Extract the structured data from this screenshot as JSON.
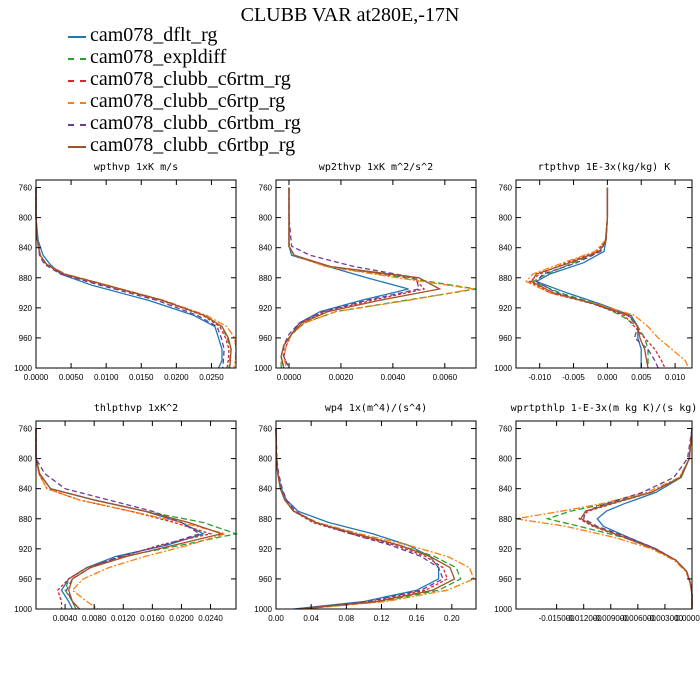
{
  "title": "CLUBB VAR at280E,-17N",
  "series": [
    {
      "name": "cam078_dflt_rg",
      "color": "#1f77b4",
      "dash": ""
    },
    {
      "name": "cam078_expldiff",
      "color": "#2ca02c",
      "dash": "6,3"
    },
    {
      "name": "cam078_clubb_c6rtm_rg",
      "color": "#d62728",
      "dash": "3,2"
    },
    {
      "name": "cam078_clubb_c6rtp_rg",
      "color": "#ff7f0e",
      "dash": "7,2,2,2"
    },
    {
      "name": "cam078_clubb_c6rtbm_rg",
      "color": "#6a3d9a",
      "dash": "5,3"
    },
    {
      "name": "cam078_clubb_c6rtbp_rg",
      "color": "#a0522d",
      "dash": ""
    }
  ],
  "chart_data": [
    {
      "type": "line",
      "title": "wpthvp  1xK m/s",
      "xlim": [
        0,
        0.0285
      ],
      "ylim": [
        750,
        1000
      ],
      "xticks": [
        "0.0000",
        "0.0050",
        "0.0100",
        "0.0150",
        "0.0200",
        "0.0250"
      ],
      "xtick_values": [
        0,
        0.005,
        0.01,
        0.015,
        0.02,
        0.025
      ],
      "yticks": [
        "760",
        "800",
        "840",
        "880",
        "920",
        "960",
        "1000"
      ],
      "ytick_values": [
        760,
        800,
        840,
        880,
        920,
        960,
        1000
      ],
      "y": [
        760,
        800,
        830,
        850,
        862,
        875,
        890,
        910,
        930,
        945,
        960,
        975,
        990,
        1000
      ],
      "series_x": [
        [
          0,
          0,
          0.0003,
          0.001,
          0.002,
          0.0035,
          0.008,
          0.016,
          0.0225,
          0.0255,
          0.026,
          0.0265,
          0.0265,
          0.026
        ],
        [
          0,
          0,
          0.0002,
          0.0006,
          0.0015,
          0.004,
          0.01,
          0.018,
          0.024,
          0.0265,
          0.0272,
          0.0278,
          0.0276,
          0.0275
        ],
        [
          0,
          0,
          0.0002,
          0.0006,
          0.0014,
          0.0038,
          0.0098,
          0.0178,
          0.0238,
          0.0262,
          0.027,
          0.0275,
          0.0274,
          0.0272
        ],
        [
          0,
          0,
          0.0002,
          0.0006,
          0.0015,
          0.0042,
          0.0102,
          0.0182,
          0.0243,
          0.0272,
          0.0283,
          0.0285,
          0.0284,
          0.0282
        ],
        [
          0,
          0,
          0.0002,
          0.0005,
          0.0012,
          0.0035,
          0.0092,
          0.0172,
          0.023,
          0.0258,
          0.0264,
          0.0268,
          0.0267,
          0.0266
        ],
        [
          0,
          0,
          0.0002,
          0.0006,
          0.0015,
          0.004,
          0.0101,
          0.018,
          0.024,
          0.0265,
          0.0274,
          0.0278,
          0.0277,
          0.0276
        ]
      ]
    },
    {
      "type": "line",
      "title": "wp2thvp  1xK m^2/s^2",
      "xlim": [
        -0.0005,
        0.0072
      ],
      "ylim": [
        750,
        1000
      ],
      "xticks": [
        "0.0000",
        "0.0020",
        "0.0040",
        "0.0060"
      ],
      "xtick_values": [
        0,
        0.002,
        0.004,
        0.006
      ],
      "yticks": [
        "760",
        "800",
        "840",
        "880",
        "920",
        "960",
        "1000"
      ],
      "ytick_values": [
        760,
        800,
        840,
        880,
        920,
        960,
        1000
      ],
      "y": [
        760,
        800,
        838,
        850,
        865,
        880,
        895,
        910,
        925,
        940,
        955,
        970,
        985,
        1000
      ],
      "series_x": [
        [
          0,
          0,
          0,
          0.0001,
          0.0015,
          0.003,
          0.0046,
          0.0028,
          0.0012,
          0.0004,
          0.0001,
          -0.0002,
          -0.0003,
          -0.0002
        ],
        [
          0,
          0,
          0,
          0.0002,
          0.0015,
          0.0045,
          0.0072,
          0.0045,
          0.0018,
          0.0006,
          0.0001,
          -0.0002,
          -0.0003,
          -0.0003
        ],
        [
          0,
          0,
          0,
          0.0002,
          0.0015,
          0.0048,
          0.0052,
          0.0032,
          0.0014,
          0.0004,
          0.0001,
          -0.0001,
          -0.0002,
          0
        ],
        [
          0,
          0,
          0,
          0.0002,
          0.0014,
          0.0042,
          0.0071,
          0.0046,
          0.0018,
          0.0006,
          0.0001,
          -0.0001,
          -0.0002,
          -0.0001
        ],
        [
          0,
          0,
          0.0001,
          0.0008,
          0.0025,
          0.0049,
          0.005,
          0.003,
          0.0013,
          0.0004,
          0,
          -0.0002,
          -0.0002,
          0
        ],
        [
          0,
          0,
          0,
          0.0002,
          0.0016,
          0.005,
          0.0058,
          0.0035,
          0.0015,
          0.0005,
          0.0001,
          -0.0002,
          -0.0003,
          -0.0002
        ]
      ]
    },
    {
      "type": "line",
      "title": "rtpthvp  1E-3x(kg/kg) K",
      "xlim": [
        -0.0135,
        0.0125
      ],
      "ylim": [
        750,
        1000
      ],
      "xticks": [
        "-0.010",
        "-0.005",
        "0.000",
        "0.005",
        "0.010"
      ],
      "xtick_values": [
        -0.01,
        -0.005,
        0,
        0.005,
        0.01
      ],
      "yticks": [
        "760",
        "800",
        "840",
        "880",
        "920",
        "960",
        "1000"
      ],
      "ytick_values": [
        760,
        800,
        840,
        880,
        920,
        960,
        1000
      ],
      "y": [
        760,
        800,
        830,
        845,
        860,
        875,
        885,
        900,
        915,
        930,
        945,
        960,
        975,
        990,
        1000
      ],
      "series_x": [
        [
          0,
          0,
          -0.0002,
          -0.0005,
          -0.0035,
          -0.0085,
          -0.0105,
          -0.006,
          -0.001,
          0.0035,
          0.0045,
          0.0045,
          0.005,
          0.005,
          0.005
        ],
        [
          0,
          0,
          -0.0002,
          -0.001,
          -0.005,
          -0.009,
          -0.011,
          -0.007,
          -0.0015,
          0.002,
          0.0045,
          0.0055,
          0.006,
          0.006,
          0.006
        ],
        [
          0,
          0,
          -0.0003,
          -0.0015,
          -0.006,
          -0.01,
          -0.0115,
          -0.0085,
          -0.002,
          0.0025,
          0.004,
          0.0055,
          0.007,
          0.008,
          0.0085
        ],
        [
          0,
          0,
          -0.0003,
          -0.0018,
          -0.0065,
          -0.011,
          -0.012,
          -0.0085,
          -0.0015,
          0.004,
          0.006,
          0.0075,
          0.0095,
          0.0115,
          0.012
        ],
        [
          0,
          0,
          -0.0002,
          -0.001,
          -0.0045,
          -0.0095,
          -0.0105,
          -0.0075,
          -0.002,
          0.003,
          0.0045,
          0.004,
          0.006,
          0.007,
          0.0075
        ],
        [
          0,
          0,
          -0.0002,
          -0.0012,
          -0.0055,
          -0.0105,
          -0.0112,
          -0.008,
          -0.0018,
          0.0032,
          0.0045,
          0.0048,
          0.0055,
          0.0058,
          0.006
        ]
      ]
    },
    {
      "type": "line",
      "title": "thlpthvp  1xK^2",
      "xlim": [
        0,
        0.0275
      ],
      "ylim": [
        750,
        1000
      ],
      "xticks": [
        "0.0040",
        "0.0080",
        "0.0120",
        "0.0160",
        "0.0200",
        "0.0240"
      ],
      "xtick_values": [
        0.004,
        0.008,
        0.012,
        0.016,
        0.02,
        0.024
      ],
      "yticks": [
        "760",
        "800",
        "840",
        "880",
        "920",
        "960",
        "1000"
      ],
      "ytick_values": [
        760,
        800,
        840,
        880,
        920,
        960,
        1000
      ],
      "y": [
        760,
        800,
        820,
        840,
        855,
        870,
        885,
        900,
        915,
        930,
        945,
        960,
        975,
        990,
        1000
      ],
      "series_x": [
        [
          0,
          0,
          0.0005,
          0.002,
          0.008,
          0.015,
          0.02,
          0.023,
          0.018,
          0.011,
          0.007,
          0.0045,
          0.0035,
          0.0045,
          0.005
        ],
        [
          0,
          0,
          0.0005,
          0.002,
          0.008,
          0.015,
          0.023,
          0.0275,
          0.02,
          0.012,
          0.007,
          0.0045,
          0.004,
          0.005,
          0.0055
        ],
        [
          0,
          0,
          0.0004,
          0.0015,
          0.006,
          0.013,
          0.019,
          0.024,
          0.017,
          0.012,
          0.007,
          0.0045,
          0.003,
          0.0035,
          0.0035
        ],
        [
          0,
          0,
          0.0004,
          0.0015,
          0.006,
          0.013,
          0.02,
          0.026,
          0.021,
          0.015,
          0.01,
          0.0065,
          0.005,
          0.007,
          0.0085
        ],
        [
          0,
          0,
          0.0012,
          0.004,
          0.01,
          0.016,
          0.02,
          0.0225,
          0.0175,
          0.0115,
          0.0075,
          0.005,
          0.0042,
          0.005,
          0.0055
        ],
        [
          0,
          0,
          0.0005,
          0.002,
          0.008,
          0.015,
          0.021,
          0.0255,
          0.019,
          0.0125,
          0.0075,
          0.005,
          0.0045,
          0.005,
          0.006
        ]
      ]
    },
    {
      "type": "line",
      "title": "wp4  1x(m^4)/(s^4)",
      "xlim": [
        0,
        0.2275
      ],
      "ylim": [
        750,
        1000
      ],
      "xticks": [
        "0.00",
        "0.04",
        "0.08",
        "0.12",
        "0.16",
        "0.20"
      ],
      "xtick_values": [
        0,
        0.04,
        0.08,
        0.12,
        0.16,
        0.2
      ],
      "yticks": [
        "760",
        "800",
        "840",
        "880",
        "920",
        "960",
        "1000"
      ],
      "ytick_values": [
        760,
        800,
        840,
        880,
        920,
        960,
        1000
      ],
      "y": [
        760,
        800,
        820,
        840,
        855,
        870,
        885,
        900,
        915,
        930,
        945,
        960,
        975,
        990,
        1000
      ],
      "series_x": [
        [
          0,
          0.0005,
          0.002,
          0.006,
          0.012,
          0.025,
          0.06,
          0.11,
          0.15,
          0.175,
          0.185,
          0.185,
          0.16,
          0.1,
          0.02
        ],
        [
          0,
          0.0005,
          0.002,
          0.005,
          0.01,
          0.02,
          0.045,
          0.09,
          0.14,
          0.18,
          0.205,
          0.21,
          0.185,
          0.12,
          0.03
        ],
        [
          0,
          0.0005,
          0.002,
          0.005,
          0.01,
          0.02,
          0.042,
          0.085,
          0.135,
          0.17,
          0.19,
          0.195,
          0.17,
          0.11,
          0.025
        ],
        [
          0,
          0.0005,
          0.002,
          0.005,
          0.01,
          0.021,
          0.047,
          0.095,
          0.15,
          0.195,
          0.22,
          0.225,
          0.195,
          0.125,
          0.03
        ],
        [
          0,
          0.001,
          0.003,
          0.007,
          0.012,
          0.022,
          0.045,
          0.085,
          0.13,
          0.165,
          0.185,
          0.19,
          0.165,
          0.105,
          0.025
        ],
        [
          0,
          0.0005,
          0.002,
          0.005,
          0.01,
          0.02,
          0.045,
          0.09,
          0.14,
          0.175,
          0.198,
          0.203,
          0.178,
          0.115,
          0.028
        ]
      ]
    },
    {
      "type": "line",
      "title": "wprtpthlp  1-E-3x(m kg K)/(s kg)",
      "xlim": [
        -0.0195,
        0
      ],
      "ylim": [
        750,
        1000
      ],
      "xticks": [
        "-0.015000",
        "-0.012000",
        "-0.009000",
        "-0.006000",
        "-0.003000",
        "0.000000"
      ],
      "xtick_values": [
        -0.015,
        -0.012,
        -0.009,
        -0.006,
        -0.003,
        0
      ],
      "yticks": [
        "760",
        "800",
        "840",
        "880",
        "920",
        "960",
        "1000"
      ],
      "ytick_values": [
        760,
        800,
        840,
        880,
        920,
        960,
        1000
      ],
      "y": [
        760,
        800,
        825,
        845,
        860,
        870,
        880,
        890,
        905,
        920,
        935,
        950,
        965,
        980,
        1000
      ],
      "series_x": [
        [
          0,
          -0.0003,
          -0.0012,
          -0.004,
          -0.0075,
          -0.0095,
          -0.0105,
          -0.0098,
          -0.007,
          -0.004,
          -0.0018,
          -0.0006,
          -0.0002,
          0,
          0
        ],
        [
          0,
          -0.0003,
          -0.0012,
          -0.0045,
          -0.0095,
          -0.0135,
          -0.016,
          -0.0125,
          -0.0075,
          -0.0042,
          -0.0018,
          -0.0006,
          -0.0002,
          0,
          0
        ],
        [
          0,
          -0.0003,
          -0.0013,
          -0.0045,
          -0.0088,
          -0.0115,
          -0.0125,
          -0.011,
          -0.0075,
          -0.0042,
          -0.0018,
          -0.0006,
          -0.0002,
          0,
          0
        ],
        [
          0,
          -0.0003,
          -0.0014,
          -0.005,
          -0.01,
          -0.0145,
          -0.0195,
          -0.014,
          -0.0085,
          -0.0045,
          -0.002,
          -0.0007,
          -0.0002,
          0,
          0
        ],
        [
          0,
          -0.0005,
          -0.002,
          -0.0055,
          -0.0095,
          -0.0118,
          -0.012,
          -0.0105,
          -0.007,
          -0.004,
          -0.0018,
          -0.0006,
          -0.0002,
          0,
          0
        ],
        [
          0,
          -0.0003,
          -0.0013,
          -0.0045,
          -0.009,
          -0.0118,
          -0.0123,
          -0.0108,
          -0.0074,
          -0.0042,
          -0.0018,
          -0.0006,
          -0.0002,
          0,
          0
        ]
      ]
    }
  ]
}
